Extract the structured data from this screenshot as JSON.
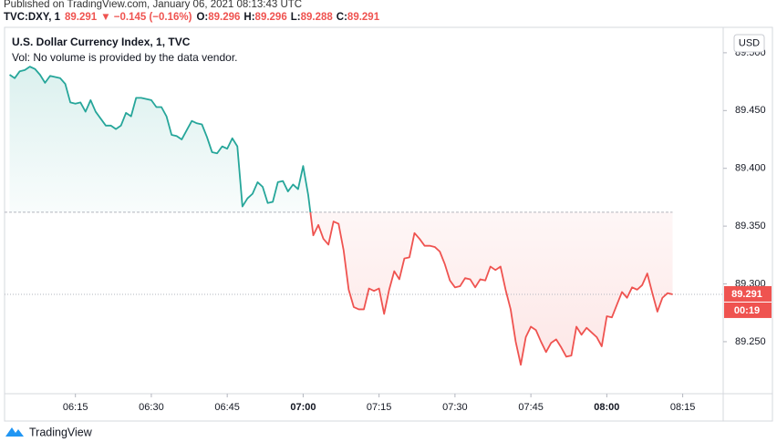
{
  "header": {
    "published": "Published on TradingView.com, January 06, 2021 08:13:43 UTC",
    "symbol": "TVC:DXY, 1",
    "last": "89.291",
    "change": "▼ −0.145 (−0.16%)",
    "open_label": "O:",
    "open": "89.296",
    "high_label": "H:",
    "high": "89.296",
    "low_label": "L:",
    "low": "89.288",
    "close_label": "C:",
    "close": "89.291"
  },
  "chart_data": {
    "type": "baseline",
    "title": "U.S. Dollar Currency Index, 1, TVC",
    "subtitle": "Vol: No volume is provided by the data vendor.",
    "currency": "USD",
    "x": [
      "06:02",
      "06:03",
      "06:04",
      "06:05",
      "06:06",
      "06:07",
      "06:08",
      "06:09",
      "06:10",
      "06:11",
      "06:12",
      "06:13",
      "06:14",
      "06:15",
      "06:16",
      "06:17",
      "06:18",
      "06:19",
      "06:20",
      "06:21",
      "06:22",
      "06:23",
      "06:24",
      "06:25",
      "06:26",
      "06:27",
      "06:28",
      "06:29",
      "06:30",
      "06:31",
      "06:32",
      "06:33",
      "06:34",
      "06:35",
      "06:36",
      "06:37",
      "06:38",
      "06:39",
      "06:40",
      "06:41",
      "06:42",
      "06:43",
      "06:44",
      "06:45",
      "06:46",
      "06:47",
      "06:48",
      "06:49",
      "06:50",
      "06:51",
      "06:52",
      "06:53",
      "06:54",
      "06:55",
      "06:56",
      "06:57",
      "06:58",
      "06:59",
      "07:00",
      "07:01",
      "07:02",
      "07:03",
      "07:04",
      "07:05",
      "07:06",
      "07:07",
      "07:08",
      "07:09",
      "07:10",
      "07:11",
      "07:12",
      "07:13",
      "07:14",
      "07:15",
      "07:16",
      "07:17",
      "07:18",
      "07:19",
      "07:20",
      "07:21",
      "07:22",
      "07:23",
      "07:24",
      "07:25",
      "07:26",
      "07:27",
      "07:28",
      "07:29",
      "07:30",
      "07:31",
      "07:32",
      "07:33",
      "07:34",
      "07:35",
      "07:36",
      "07:37",
      "07:38",
      "07:39",
      "07:40",
      "07:41",
      "07:42",
      "07:43",
      "07:44",
      "07:45",
      "07:46",
      "07:47",
      "07:48",
      "07:49",
      "07:50",
      "07:51",
      "07:52",
      "07:53",
      "07:54",
      "07:55",
      "07:56",
      "07:57",
      "07:58",
      "07:59",
      "08:00",
      "08:01",
      "08:02",
      "08:03",
      "08:04",
      "08:05",
      "08:06",
      "08:07",
      "08:08",
      "08:09",
      "08:10",
      "08:11",
      "08:12",
      "08:13"
    ],
    "values": [
      89.481,
      89.478,
      89.484,
      89.485,
      89.488,
      89.486,
      89.481,
      89.474,
      89.48,
      89.479,
      89.478,
      89.473,
      89.457,
      89.456,
      89.457,
      89.449,
      89.459,
      89.449,
      89.443,
      89.437,
      89.437,
      89.434,
      89.437,
      89.448,
      89.445,
      89.461,
      89.461,
      89.46,
      89.459,
      89.453,
      89.453,
      89.445,
      89.429,
      89.428,
      89.425,
      89.433,
      89.441,
      89.439,
      89.438,
      89.427,
      89.414,
      89.413,
      89.419,
      89.417,
      89.426,
      89.419,
      89.367,
      89.374,
      89.378,
      89.388,
      89.384,
      89.37,
      89.371,
      89.388,
      89.389,
      89.38,
      89.386,
      89.382,
      89.402,
      89.377,
      89.342,
      89.351,
      89.339,
      89.334,
      89.354,
      89.352,
      89.329,
      89.295,
      89.28,
      89.278,
      89.278,
      89.296,
      89.294,
      89.296,
      89.274,
      89.295,
      89.311,
      89.304,
      89.322,
      89.323,
      89.344,
      89.339,
      89.333,
      89.333,
      89.332,
      89.328,
      89.317,
      89.303,
      89.297,
      89.298,
      89.305,
      89.304,
      89.297,
      89.304,
      89.303,
      89.315,
      89.312,
      89.315,
      89.295,
      89.278,
      89.25,
      89.23,
      89.254,
      89.263,
      89.26,
      89.25,
      89.241,
      89.249,
      89.252,
      89.245,
      89.237,
      89.238,
      89.263,
      89.256,
      89.262,
      89.258,
      89.254,
      89.246,
      89.272,
      89.271,
      89.282,
      89.293,
      89.288,
      89.297,
      89.295,
      89.299,
      89.309,
      89.292,
      89.276,
      89.288,
      89.292,
      89.291
    ],
    "baseline": 89.362,
    "color_above": "#26a69a",
    "color_below": "#ef5350",
    "last_value_label": "89.291",
    "countdown": "00:19",
    "xlim": [
      "06:01",
      "08:23"
    ],
    "xticks": [
      "06:15",
      "06:30",
      "06:45",
      "07:00",
      "07:15",
      "07:30",
      "07:45",
      "08:00",
      "08:15"
    ],
    "ylim": [
      89.205,
      89.522
    ],
    "yticks": [
      {
        "value": 89.25,
        "label": "89.250"
      },
      {
        "value": 89.3,
        "label": "89.300"
      },
      {
        "value": 89.35,
        "label": "89.350"
      },
      {
        "value": 89.4,
        "label": "89.400"
      },
      {
        "value": 89.45,
        "label": "89.450"
      },
      {
        "value": 89.5,
        "label": "89.500"
      }
    ]
  },
  "footer": {
    "logo": "TradingView"
  }
}
